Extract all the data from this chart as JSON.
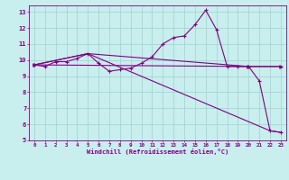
{
  "xlabel": "Windchill (Refroidissement éolien,°C)",
  "bg_color": "#c8eeee",
  "line_color": "#800080",
  "grid_color": "#a0d0d0",
  "xlim": [
    -0.5,
    23.5
  ],
  "ylim": [
    5,
    13.4
  ],
  "xticks": [
    0,
    1,
    2,
    3,
    4,
    5,
    6,
    7,
    8,
    9,
    10,
    11,
    12,
    13,
    14,
    15,
    16,
    17,
    18,
    19,
    20,
    21,
    22,
    23
  ],
  "yticks": [
    5,
    6,
    7,
    8,
    9,
    10,
    11,
    12,
    13
  ],
  "series0_x": [
    0,
    1,
    2,
    3,
    4,
    5,
    6,
    7,
    8,
    9,
    10,
    11,
    12,
    13,
    14,
    15,
    16,
    17,
    18,
    19,
    20,
    21,
    22,
    23
  ],
  "series0_y": [
    9.7,
    9.6,
    9.9,
    9.9,
    10.1,
    10.4,
    9.8,
    9.3,
    9.4,
    9.5,
    9.8,
    10.2,
    11.0,
    11.4,
    11.5,
    12.2,
    13.1,
    11.9,
    9.6,
    9.6,
    9.6,
    8.7,
    5.6,
    5.5
  ],
  "series1_x": [
    0,
    20,
    23
  ],
  "series1_y": [
    9.7,
    9.6,
    9.6
  ],
  "series2_x": [
    0,
    5,
    22,
    23
  ],
  "series2_y": [
    9.7,
    10.4,
    5.6,
    5.5
  ],
  "series3_x": [
    0,
    5,
    20,
    23
  ],
  "series3_y": [
    9.7,
    10.4,
    9.6,
    9.6
  ]
}
